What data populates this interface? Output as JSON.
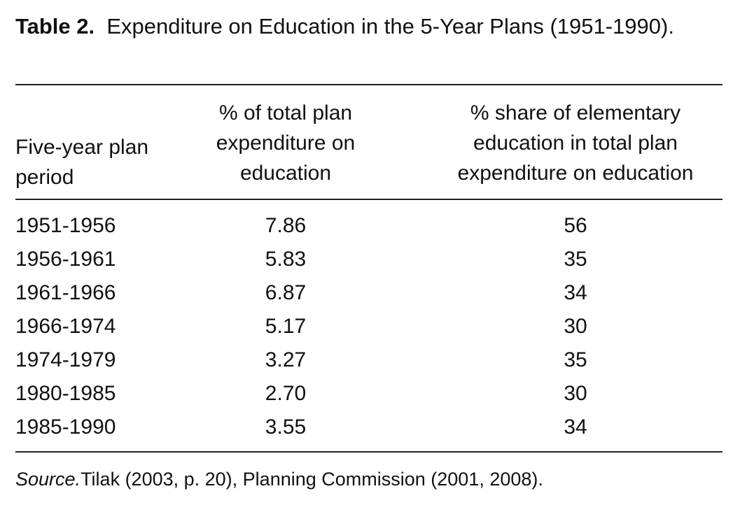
{
  "table": {
    "label": "Table 2.",
    "caption": "Expenditure on Education in the 5-Year Plans (1951-1990).",
    "headers": [
      "Five-year plan period",
      "% of total plan expenditure on education",
      "% share of elementary education in total plan expenditure on education"
    ],
    "rows": [
      {
        "period": "1951-1956",
        "pct_total": "7.86",
        "pct_elementary": "56"
      },
      {
        "period": "1956-1961",
        "pct_total": "5.83",
        "pct_elementary": "35"
      },
      {
        "period": "1961-1966",
        "pct_total": "6.87",
        "pct_elementary": "34"
      },
      {
        "period": "1966-1974",
        "pct_total": "5.17",
        "pct_elementary": "30"
      },
      {
        "period": "1974-1979",
        "pct_total": "3.27",
        "pct_elementary": "35"
      },
      {
        "period": "1980-1985",
        "pct_total": "2.70",
        "pct_elementary": "30"
      },
      {
        "period": "1985-1990",
        "pct_total": "3.55",
        "pct_elementary": "34"
      }
    ],
    "source_label": "Source.",
    "source_text": "Tilak (2003, p. 20), Planning Commission (2001, 2008)."
  }
}
